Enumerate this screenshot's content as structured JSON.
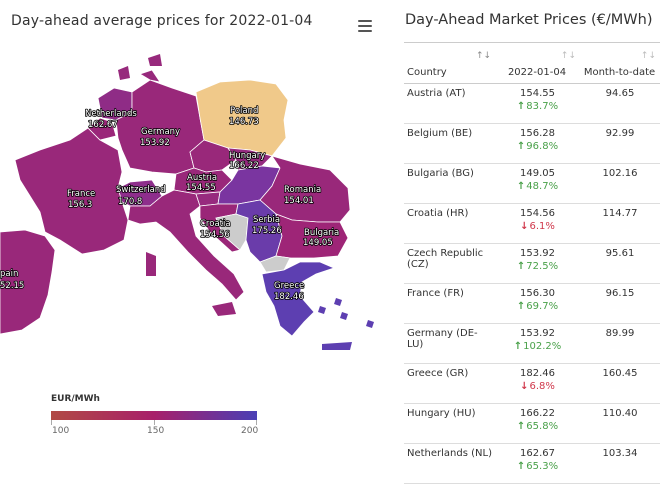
{
  "map": {
    "title": "Day-ahead average prices for 2022-01-04",
    "menu_icon": "hamburger-menu-icon",
    "legend": {
      "title": "EUR/MWh",
      "min_label": "100",
      "mid_label": "150",
      "max_label": "200"
    },
    "labels": [
      {
        "id": "netherlands",
        "name": "Netherlands",
        "value": "162.67"
      },
      {
        "id": "germany",
        "name": "Germany",
        "value": "153.92"
      },
      {
        "id": "poland",
        "name": "Poland",
        "value": "146.73"
      },
      {
        "id": "france",
        "name": "France",
        "value": "156.3"
      },
      {
        "id": "switzerland",
        "name": "Switzerland",
        "value": "170.8"
      },
      {
        "id": "austria",
        "name": "Austria",
        "value": "154.55"
      },
      {
        "id": "hungary",
        "name": "Hungary",
        "value": "166.22"
      },
      {
        "id": "romania",
        "name": "Romania",
        "value": "154.01"
      },
      {
        "id": "croatia",
        "name": "Croatia",
        "value": "154.56"
      },
      {
        "id": "serbia",
        "name": "Serbia",
        "value": "175.26"
      },
      {
        "id": "bulgaria",
        "name": "Bulgaria",
        "value": "149.05"
      },
      {
        "id": "greece",
        "name": "Greece",
        "value": "182.46"
      },
      {
        "id": "spain",
        "name": "pain",
        "value": "52.15"
      }
    ],
    "colors": {
      "poland": "#f0c98a",
      "western": "#99287a",
      "swiss": "#8e2e8c",
      "hungary": "#7a35a0",
      "serbia": "#6a3caa",
      "greece": "#5d3fb1",
      "bulgaria": "#9e2577",
      "croatia": "#9a2678",
      "ocean": "#ffffff"
    }
  },
  "table": {
    "title": "Day-Ahead Market Prices (€/MWh)",
    "headers": {
      "country": "Country",
      "date": "2022-01-04",
      "mtd": "Month-to-date"
    },
    "rows": [
      {
        "country": "Austria (AT)",
        "price": "154.55",
        "change": "83.7%",
        "dir": "up",
        "mtd": "94.65"
      },
      {
        "country": "Belgium (BE)",
        "price": "156.28",
        "change": "96.8%",
        "dir": "up",
        "mtd": "92.99"
      },
      {
        "country": "Bulgaria (BG)",
        "price": "149.05",
        "change": "48.7%",
        "dir": "up",
        "mtd": "102.16"
      },
      {
        "country": "Croatia (HR)",
        "price": "154.56",
        "change": "6.1%",
        "dir": "down",
        "mtd": "114.77"
      },
      {
        "country": "Czech Republic (CZ)",
        "price": "153.92",
        "change": "72.5%",
        "dir": "up",
        "mtd": "95.61"
      },
      {
        "country": "France (FR)",
        "price": "156.30",
        "change": "69.7%",
        "dir": "up",
        "mtd": "96.15"
      },
      {
        "country": "Germany (DE-LU)",
        "price": "153.92",
        "change": "102.2%",
        "dir": "up",
        "mtd": "89.99"
      },
      {
        "country": "Greece (GR)",
        "price": "182.46",
        "change": "6.8%",
        "dir": "down",
        "mtd": "160.45"
      },
      {
        "country": "Hungary (HU)",
        "price": "166.22",
        "change": "65.8%",
        "dir": "up",
        "mtd": "110.40"
      },
      {
        "country": "Netherlands (NL)",
        "price": "162.67",
        "change": "65.3%",
        "dir": "up",
        "mtd": "103.34"
      }
    ]
  }
}
